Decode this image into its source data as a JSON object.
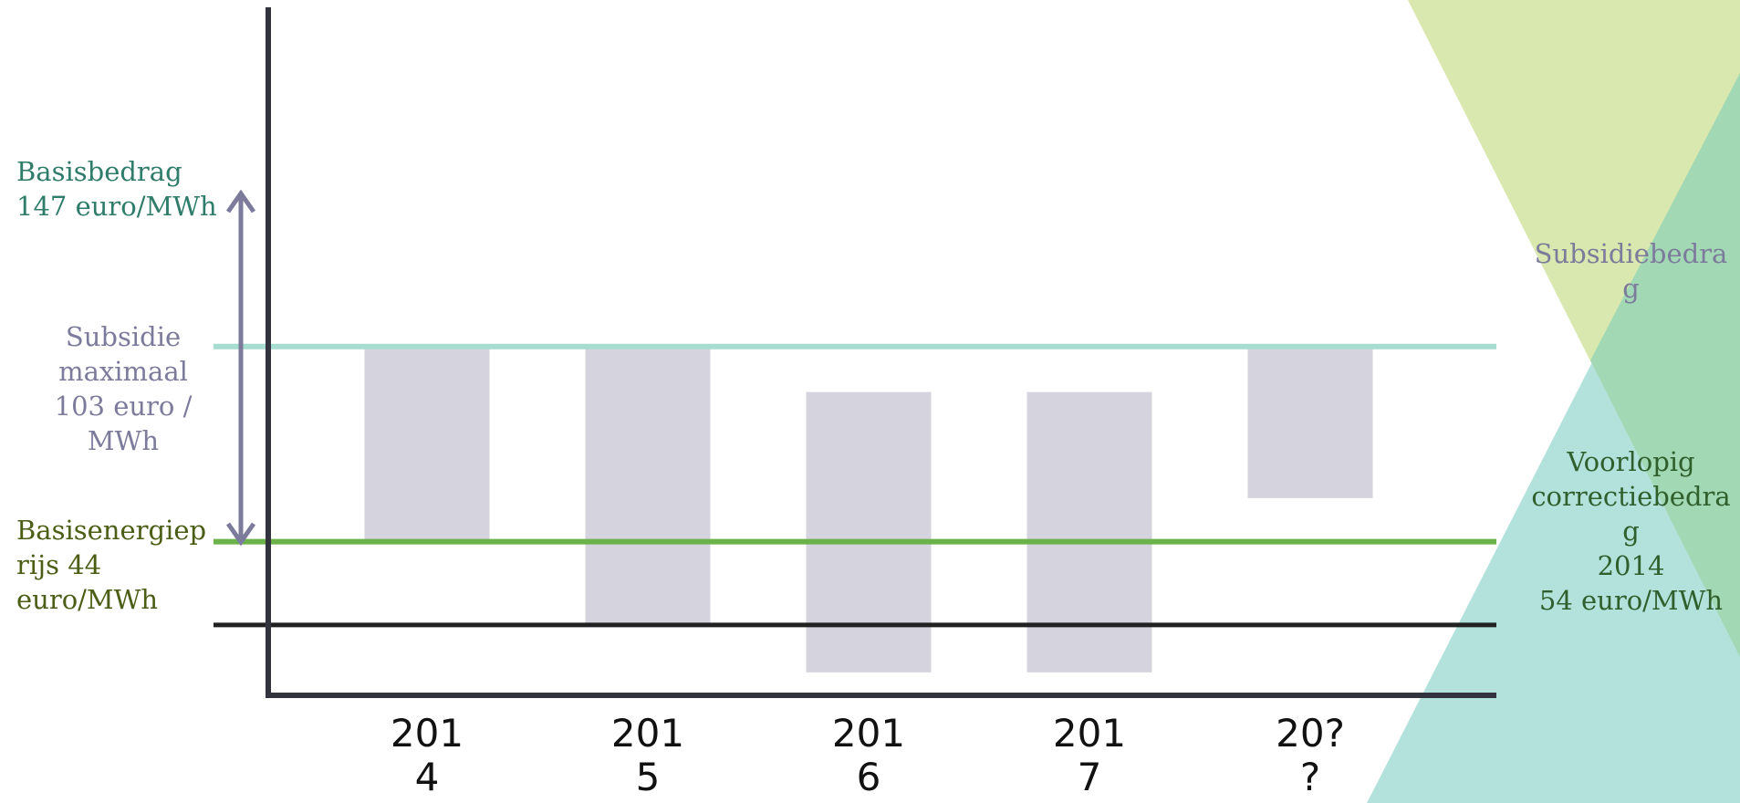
{
  "chart_data": {
    "type": "bar",
    "categories": [
      "201\n4",
      "201\n5",
      "201\n6",
      "201\n7",
      "20?\n?"
    ],
    "floating_bars": [
      {
        "top": 147,
        "bottom": 44
      },
      {
        "top": 147,
        "bottom": 0
      },
      {
        "top": 123,
        "bottom": -25
      },
      {
        "top": 123,
        "bottom": -25
      },
      {
        "top": 147,
        "bottom": 67
      }
    ],
    "ylim": [
      -94,
      330
    ],
    "reference_lines": [
      {
        "name": "basisbedrag",
        "value": 147,
        "label": "Basisbedrag\n147 euro/MWh",
        "color": "#a7dcd0"
      },
      {
        "name": "basisenergieprijs",
        "value": 44,
        "label": "Basisenergiep\nrijs 44\neuro/MWh",
        "color": "#6bb24a"
      },
      {
        "name": "zero",
        "value": 0,
        "color": "#222222"
      }
    ],
    "range_annotation": {
      "from": 147,
      "to": 44,
      "label": "Subsidie\nmaximaal\n103 euro /\nMWh",
      "color": "#7d7b9c"
    },
    "legend": [
      {
        "label": "Subsidiebedra\ng",
        "color": "#7d7b9c"
      },
      {
        "label": "Voorlopig\ncorrectiebedra\ng\n2014\n54 euro/MWh",
        "color": "#2f5f2c"
      }
    ],
    "grid": false
  },
  "colors": {
    "bar": "#d4d3de",
    "axis": "#33323f",
    "basisbedrag_text": "#2e7c69",
    "basisenergieprijs_text": "#4c5e15",
    "subsidie_text": "#7d7b9c",
    "triangle_yellow": "#d8e8ae",
    "triangle_teal": "#b3e2dc",
    "triangle_overlap": "#a3d8b4"
  }
}
